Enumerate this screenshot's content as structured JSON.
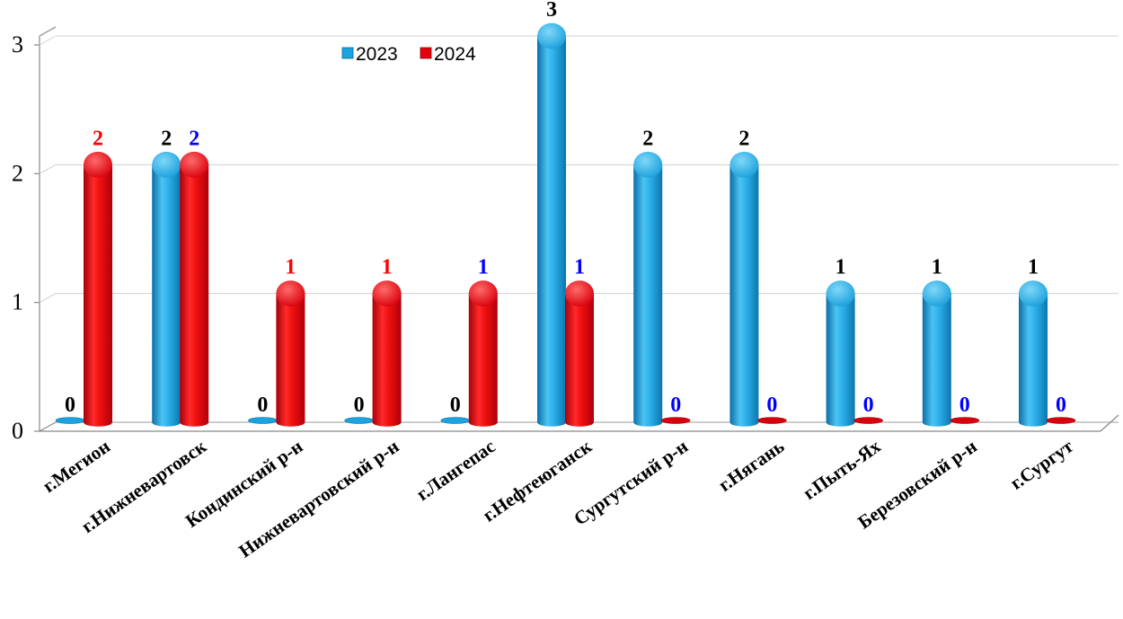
{
  "chart_data": {
    "type": "bar",
    "style": "3d-cylinder",
    "categories": [
      "г.Мегион",
      "г.Нижневартовск",
      "Кондинский р-н",
      "Нижневартовский р-н",
      "г.Лангепас",
      "г.Нефтеюганск",
      "Сургутский р-н",
      "г.Нягань",
      "г.Пыть-Ях",
      "Березовский р-н",
      "г.Сургут"
    ],
    "series": [
      {
        "name": "2023",
        "color": "#1aa3df",
        "values": [
          0,
          2,
          0,
          0,
          0,
          3,
          2,
          2,
          1,
          1,
          1
        ]
      },
      {
        "name": "2024",
        "color": "#e3000f",
        "values": [
          2,
          2,
          1,
          1,
          1,
          1,
          0,
          0,
          0,
          0,
          0
        ]
      }
    ],
    "data_labels": [
      {
        "s2023": "0",
        "c2023": "#000000",
        "s2024": "2",
        "c2024": "#ff0000"
      },
      {
        "s2023": "2",
        "c2023": "#000000",
        "s2024": "2",
        "c2024": "#0000ff"
      },
      {
        "s2023": "0",
        "c2023": "#000000",
        "s2024": "1",
        "c2024": "#ff0000"
      },
      {
        "s2023": "0",
        "c2023": "#000000",
        "s2024": "1",
        "c2024": "#ff0000"
      },
      {
        "s2023": "0",
        "c2023": "#000000",
        "s2024": "1",
        "c2024": "#0000ff"
      },
      {
        "s2023": "3",
        "c2023": "#000000",
        "s2024": "1",
        "c2024": "#0000ff"
      },
      {
        "s2023": "2",
        "c2023": "#000000",
        "s2024": "0",
        "c2024": "#0000ff"
      },
      {
        "s2023": "2",
        "c2023": "#000000",
        "s2024": "0",
        "c2024": "#0000ff"
      },
      {
        "s2023": "1",
        "c2023": "#000000",
        "s2024": "0",
        "c2024": "#0000ff"
      },
      {
        "s2023": "1",
        "c2023": "#000000",
        "s2024": "0",
        "c2024": "#0000ff"
      },
      {
        "s2023": "1",
        "c2023": "#000000",
        "s2024": "0",
        "c2024": "#0000ff"
      }
    ],
    "yticks": [
      "0",
      "1",
      "2",
      "3"
    ],
    "ylim": [
      0,
      3
    ],
    "grid": true,
    "legend": "top-center",
    "title": "",
    "xlabel": "",
    "ylabel": ""
  }
}
